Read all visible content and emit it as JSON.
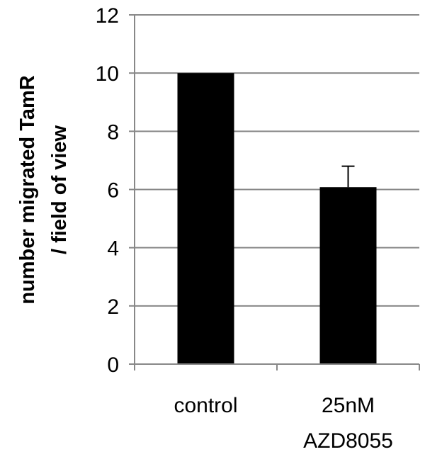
{
  "chart_data": {
    "type": "bar",
    "title": "",
    "xlabel": "",
    "ylabel_lines": [
      "number migrated TamR",
      "/ field of view"
    ],
    "categories": [
      {
        "lines": [
          "control"
        ]
      },
      {
        "lines": [
          "25nM",
          "AZD8055"
        ]
      }
    ],
    "values": [
      10,
      6.08
    ],
    "error_plus": [
      0,
      0.72
    ],
    "ylim": [
      0,
      12
    ],
    "yticks": [
      "0",
      "2",
      "4",
      "6",
      "8",
      "10",
      "12"
    ],
    "grid": true,
    "legend": "none",
    "colors": {
      "bar": "#000000",
      "grid": "#888888",
      "axis": "#888888",
      "error": "#000000"
    }
  }
}
